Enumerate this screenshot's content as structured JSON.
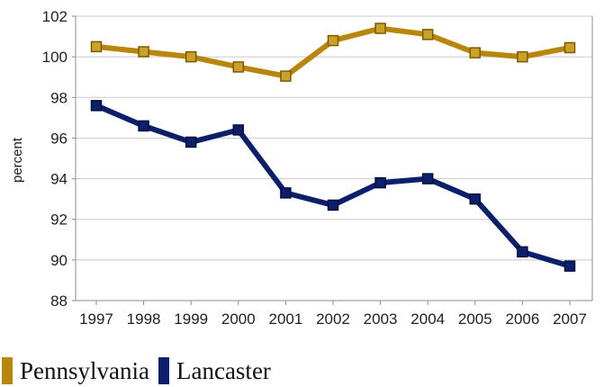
{
  "chart_data": {
    "type": "line",
    "title": "",
    "xlabel": "",
    "ylabel": "percent",
    "ylim": [
      88,
      102
    ],
    "yticks": [
      88,
      90,
      92,
      94,
      96,
      98,
      100,
      102
    ],
    "categories": [
      "1997",
      "1998",
      "1999",
      "2000",
      "2001",
      "2002",
      "2003",
      "2004",
      "2005",
      "2006",
      "2007"
    ],
    "grid": "horizontal",
    "legend_position": "bottom-left",
    "series": [
      {
        "name": "Pennsylvania",
        "color": "#b8860b",
        "marker": "square",
        "values": [
          100.5,
          100.25,
          100.0,
          99.5,
          99.05,
          100.8,
          101.4,
          101.1,
          100.2,
          100.0,
          100.45
        ]
      },
      {
        "name": "Lancaster",
        "color": "#0c1f6b",
        "marker": "square",
        "values": [
          97.6,
          96.6,
          95.8,
          96.4,
          93.3,
          92.7,
          93.8,
          94.0,
          93.0,
          90.4,
          89.7
        ]
      }
    ]
  }
}
